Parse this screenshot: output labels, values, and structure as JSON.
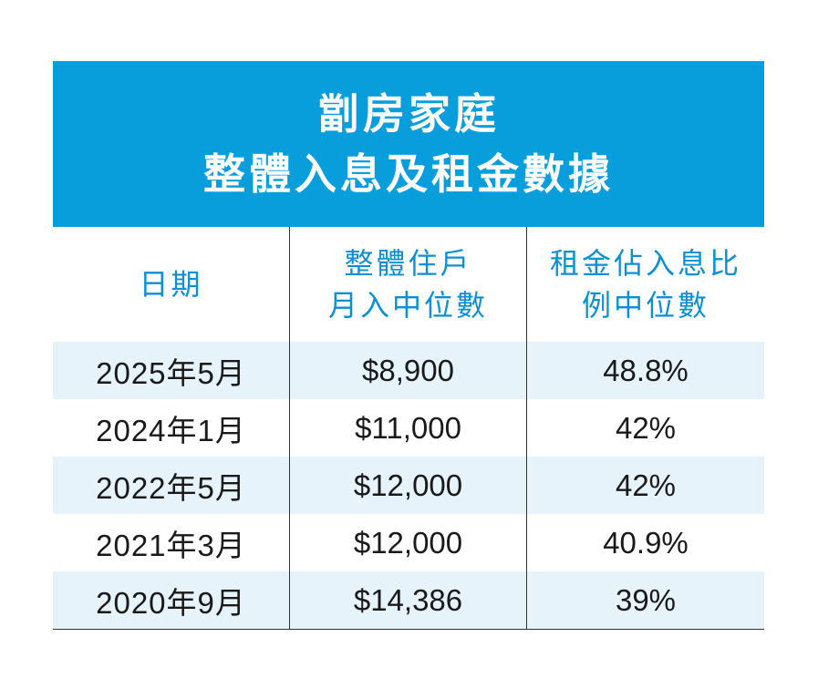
{
  "title": {
    "line1": "劏房家庭",
    "line2": "整體入息及租金數據"
  },
  "headers": {
    "date": "日期",
    "income_line1": "整體住戶",
    "income_line2": "月入中位數",
    "ratio_line1": "租金佔入息比",
    "ratio_line2": "例中位數"
  },
  "rows": [
    {
      "date": "2025年5月",
      "income": "$8,900",
      "ratio": "48.8%"
    },
    {
      "date": "2024年1月",
      "income": "$11,000",
      "ratio": "42%"
    },
    {
      "date": "2022年5月",
      "income": "$12,000",
      "ratio": "42%"
    },
    {
      "date": "2021年3月",
      "income": "$12,000",
      "ratio": "40.9%"
    },
    {
      "date": "2020年9月",
      "income": "$14,386",
      "ratio": "39%"
    }
  ],
  "colors": {
    "title_bg": "#089ddb",
    "header_text": "#0d8fd1",
    "row_shade": "#e6f3fb"
  }
}
